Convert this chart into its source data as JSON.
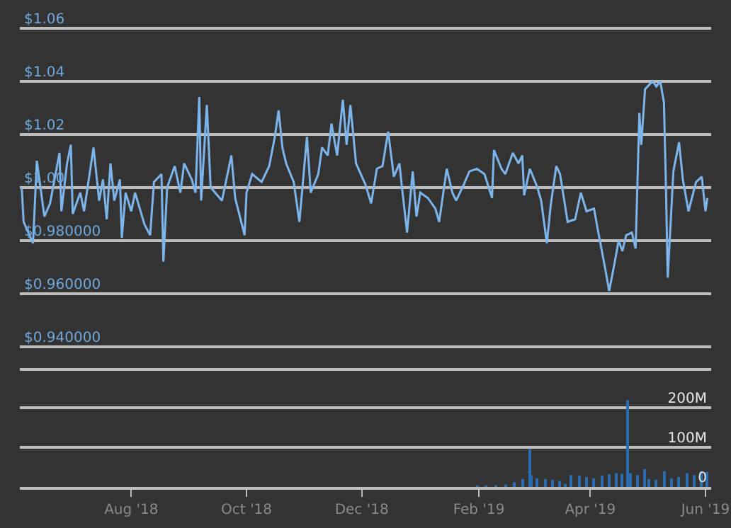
{
  "chart_data": [
    {
      "type": "line",
      "tick_labels": "y",
      "grid": "y",
      "xlim": [
        "2018-06-03",
        "2019-06-04"
      ],
      "ylim": [
        0.932,
        1.07
      ],
      "yticks": [
        {
          "value": 0.94,
          "label": "$0.940000"
        },
        {
          "value": 0.96,
          "label": "$0.960000"
        },
        {
          "value": 0.98,
          "label": "$0.980000"
        },
        {
          "value": 1.0,
          "label": "$1.00"
        },
        {
          "value": 1.02,
          "label": "$1.02"
        },
        {
          "value": 1.04,
          "label": "$1.04"
        },
        {
          "value": 1.06,
          "label": "$1.06"
        }
      ],
      "series": [
        {
          "color": "#7cb5ec",
          "x": [
            "2018-06-04",
            "2018-06-05",
            "2018-06-10",
            "2018-06-12",
            "2018-06-16",
            "2018-06-19",
            "2018-06-24",
            "2018-06-25",
            "2018-06-28",
            "2018-06-30",
            "2018-07-01",
            "2018-07-05",
            "2018-07-07",
            "2018-07-12",
            "2018-07-15",
            "2018-07-17",
            "2018-07-19",
            "2018-07-21",
            "2018-07-23",
            "2018-07-26",
            "2018-07-27",
            "2018-07-29",
            "2018-08-01",
            "2018-08-03",
            "2018-08-08",
            "2018-08-11",
            "2018-08-13",
            "2018-08-17",
            "2018-08-18",
            "2018-08-20",
            "2018-08-24",
            "2018-08-27",
            "2018-08-29",
            "2018-09-02",
            "2018-09-04",
            "2018-09-06",
            "2018-09-07",
            "2018-09-10",
            "2018-09-12",
            "2018-09-18",
            "2018-09-23",
            "2018-09-25",
            "2018-09-30",
            "2018-10-01",
            "2018-10-04",
            "2018-10-09",
            "2018-10-13",
            "2018-10-16",
            "2018-10-18",
            "2018-10-20",
            "2018-10-22",
            "2018-10-26",
            "2018-10-29",
            "2018-11-02",
            "2018-11-04",
            "2018-11-08",
            "2018-11-10",
            "2018-11-13",
            "2018-11-15",
            "2018-11-18",
            "2018-11-21",
            "2018-11-23",
            "2018-11-25",
            "2018-11-28",
            "2018-12-03",
            "2018-12-06",
            "2018-12-09",
            "2018-12-12",
            "2018-12-15",
            "2018-12-18",
            "2018-12-21",
            "2018-12-22",
            "2018-12-25",
            "2018-12-28",
            "2018-12-30",
            "2019-01-01",
            "2019-01-05",
            "2019-01-09",
            "2019-01-11",
            "2019-01-15",
            "2019-01-18",
            "2019-01-20",
            "2019-01-24",
            "2019-01-27",
            "2019-01-31",
            "2019-02-04",
            "2019-02-08",
            "2019-02-09",
            "2019-02-13",
            "2019-02-15",
            "2019-02-19",
            "2019-02-22",
            "2019-02-24",
            "2019-02-25",
            "2019-02-28",
            "2019-03-04",
            "2019-03-06",
            "2019-03-09",
            "2019-03-11",
            "2019-03-14",
            "2019-03-16",
            "2019-03-20",
            "2019-03-24",
            "2019-03-27",
            "2019-03-30",
            "2019-04-03",
            "2019-04-05",
            "2019-04-09",
            "2019-04-11",
            "2019-04-14",
            "2019-04-16",
            "2019-04-18",
            "2019-04-20",
            "2019-04-23",
            "2019-04-25",
            "2019-04-27",
            "2019-04-28",
            "2019-04-30",
            "2019-05-04",
            "2019-05-06",
            "2019-05-08",
            "2019-05-10",
            "2019-05-11",
            "2019-05-12",
            "2019-05-15",
            "2019-05-18",
            "2019-05-20",
            "2019-05-23",
            "2019-05-27",
            "2019-05-30",
            "2019-06-01",
            "2019-06-02"
          ],
          "values": [
            1.0,
            0.987,
            0.979,
            1.01,
            0.989,
            0.994,
            1.013,
            0.991,
            1.009,
            1.016,
            0.99,
            0.998,
            0.991,
            1.015,
            0.995,
            1.003,
            0.988,
            1.009,
            0.995,
            1.003,
            0.981,
            0.998,
            0.991,
            0.998,
            0.986,
            0.982,
            1.002,
            1.005,
            0.972,
            1.0,
            1.008,
            0.998,
            1.009,
            1.003,
            0.998,
            1.034,
            0.995,
            1.031,
            1.0,
            0.995,
            1.012,
            0.996,
            0.982,
            0.998,
            1.005,
            1.002,
            1.008,
            1.019,
            1.029,
            1.015,
            1.009,
            1.002,
            0.987,
            1.019,
            0.998,
            1.005,
            1.015,
            1.012,
            1.024,
            1.012,
            1.033,
            1.016,
            1.031,
            1.009,
            1.001,
            0.994,
            1.007,
            1.008,
            1.021,
            1.004,
            1.009,
            1.002,
            0.983,
            1.006,
            0.989,
            0.998,
            0.996,
            0.992,
            0.987,
            1.007,
            0.998,
            0.995,
            1.001,
            1.006,
            1.007,
            1.005,
            0.996,
            1.014,
            1.007,
            1.005,
            1.013,
            1.009,
            1.012,
            0.997,
            1.007,
            1.0,
            0.995,
            0.979,
            0.993,
            1.008,
            1.005,
            0.987,
            0.988,
            0.998,
            0.991,
            0.992,
            0.984,
            0.969,
            0.961,
            0.972,
            0.98,
            0.976,
            0.982,
            0.983,
            0.977,
            1.028,
            1.016,
            1.037,
            1.04,
            1.038,
            1.04,
            1.032,
            1.002,
            0.966,
            1.006,
            1.017,
            1.003,
            0.991,
            1.002,
            1.004,
            0.991,
            0.996
          ]
        }
      ]
    },
    {
      "type": "bar",
      "grid": "y",
      "xlim": [
        "2018-06-03",
        "2019-06-04"
      ],
      "xticks": [
        {
          "value": "2018-08-01",
          "label": "Aug '18"
        },
        {
          "value": "2018-10-01",
          "label": "Oct '18"
        },
        {
          "value": "2018-12-01",
          "label": "Dec '18"
        },
        {
          "value": "2019-02-01",
          "label": "Feb '19"
        },
        {
          "value": "2019-04-01",
          "label": "Apr '19"
        },
        {
          "value": "2019-06-01",
          "label": "Jun '19"
        }
      ],
      "ylim": [
        0,
        300
      ],
      "yticks": [
        {
          "value": 0,
          "label": "0"
        },
        {
          "value": 100,
          "label": "100M"
        },
        {
          "value": 200,
          "label": "200M"
        }
      ],
      "series": [
        {
          "color": "#2b6cb0",
          "x": [
            "2019-01-31",
            "2019-02-05",
            "2019-02-10",
            "2019-02-15",
            "2019-02-20",
            "2019-02-24",
            "2019-02-28",
            "2019-03-01",
            "2019-03-04",
            "2019-03-08",
            "2019-03-12",
            "2019-03-16",
            "2019-03-19",
            "2019-03-22",
            "2019-03-26",
            "2019-03-30",
            "2019-04-03",
            "2019-04-07",
            "2019-04-11",
            "2019-04-15",
            "2019-04-18",
            "2019-04-21",
            "2019-04-22",
            "2019-04-26",
            "2019-04-30",
            "2019-05-02",
            "2019-05-06",
            "2019-05-10",
            "2019-05-14",
            "2019-05-18",
            "2019-05-22",
            "2019-05-26",
            "2019-05-30",
            "2019-06-02"
          ],
          "values": [
            3,
            3,
            4,
            6,
            12,
            20,
            95,
            30,
            22,
            20,
            18,
            15,
            8,
            30,
            28,
            25,
            22,
            28,
            32,
            35,
            33,
            219,
            35,
            30,
            45,
            20,
            18,
            40,
            22,
            25,
            35,
            30,
            40,
            38
          ]
        }
      ]
    }
  ]
}
